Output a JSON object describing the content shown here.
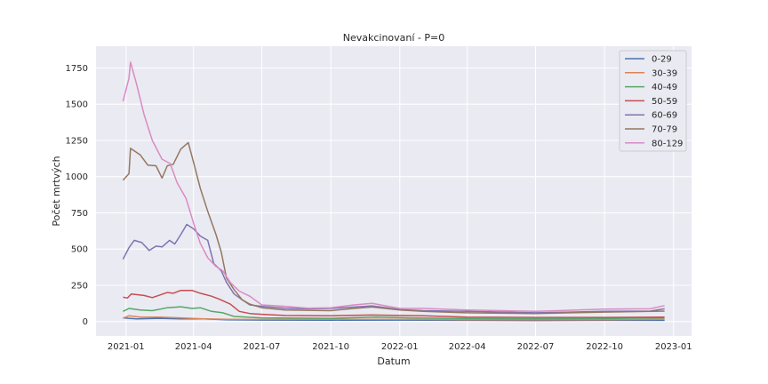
{
  "chart_data": {
    "type": "line",
    "title": "Nevakcinovaní - P=0",
    "xlabel": "Datum",
    "ylabel": "Počet mrtvých",
    "xlim": [
      "2020-11-22",
      "2023-01-25"
    ],
    "ylim": [
      -100,
      1900
    ],
    "grid": true,
    "legend_position": "top-right",
    "x_ticks": [
      "2021-01",
      "2021-04",
      "2021-07",
      "2021-10",
      "2022-01",
      "2022-04",
      "2022-07",
      "2022-10",
      "2023-01"
    ],
    "y_ticks": [
      0,
      250,
      500,
      750,
      1000,
      1250,
      1500,
      1750
    ],
    "x_tick_labels": [
      "2021-01",
      "2021-04",
      "2021-07",
      "2021-10",
      "2022-01",
      "2022-04",
      "2022-07",
      "2022-10",
      "2023-01"
    ],
    "y_tick_labels": [
      "0",
      "250",
      "500",
      "750",
      "1000",
      "1250",
      "1500",
      "1750"
    ],
    "series": [
      {
        "name": "0-29",
        "color": "#4c72b0",
        "points": [
          [
            "2020-12-28",
            25
          ],
          [
            "2021-01-15",
            18
          ],
          [
            "2021-02-15",
            22
          ],
          [
            "2021-03-15",
            18
          ],
          [
            "2021-04-15",
            18
          ],
          [
            "2021-05-15",
            12
          ],
          [
            "2021-07-01",
            10
          ],
          [
            "2021-10-01",
            9
          ],
          [
            "2022-01-01",
            10
          ],
          [
            "2022-04-01",
            8
          ],
          [
            "2022-07-01",
            7
          ],
          [
            "2022-10-01",
            8
          ],
          [
            "2022-12-20",
            8
          ]
        ]
      },
      {
        "name": "30-39",
        "color": "#dd8452",
        "points": [
          [
            "2020-12-28",
            22
          ],
          [
            "2021-01-05",
            40
          ],
          [
            "2021-01-20",
            30
          ],
          [
            "2021-02-15",
            30
          ],
          [
            "2021-03-15",
            25
          ],
          [
            "2021-04-15",
            18
          ],
          [
            "2021-05-15",
            15
          ],
          [
            "2021-07-01",
            14
          ],
          [
            "2021-10-01",
            15
          ],
          [
            "2022-01-01",
            15
          ],
          [
            "2022-04-01",
            12
          ],
          [
            "2022-07-01",
            12
          ],
          [
            "2022-10-01",
            12
          ],
          [
            "2022-12-20",
            15
          ]
        ]
      },
      {
        "name": "40-49",
        "color": "#55a868",
        "points": [
          [
            "2020-12-28",
            70
          ],
          [
            "2021-01-05",
            90
          ],
          [
            "2021-01-20",
            80
          ],
          [
            "2021-02-05",
            75
          ],
          [
            "2021-02-25",
            95
          ],
          [
            "2021-03-15",
            102
          ],
          [
            "2021-03-30",
            90
          ],
          [
            "2021-04-10",
            95
          ],
          [
            "2021-04-25",
            70
          ],
          [
            "2021-05-10",
            60
          ],
          [
            "2021-05-25",
            35
          ],
          [
            "2021-07-01",
            25
          ],
          [
            "2021-10-01",
            22
          ],
          [
            "2021-12-01",
            30
          ],
          [
            "2022-01-15",
            25
          ],
          [
            "2022-04-01",
            20
          ],
          [
            "2022-07-01",
            18
          ],
          [
            "2022-10-01",
            20
          ],
          [
            "2022-12-20",
            25
          ]
        ]
      },
      {
        "name": "50-59",
        "color": "#c44e52",
        "points": [
          [
            "2020-12-28",
            168
          ],
          [
            "2021-01-03",
            162
          ],
          [
            "2021-01-08",
            190
          ],
          [
            "2021-01-25",
            180
          ],
          [
            "2021-02-05",
            165
          ],
          [
            "2021-02-25",
            200
          ],
          [
            "2021-03-05",
            195
          ],
          [
            "2021-03-15",
            215
          ],
          [
            "2021-03-30",
            215
          ],
          [
            "2021-04-10",
            195
          ],
          [
            "2021-04-25",
            175
          ],
          [
            "2021-05-05",
            155
          ],
          [
            "2021-05-20",
            120
          ],
          [
            "2021-06-01",
            70
          ],
          [
            "2021-06-15",
            55
          ],
          [
            "2021-07-01",
            50
          ],
          [
            "2021-08-01",
            42
          ],
          [
            "2021-10-01",
            40
          ],
          [
            "2021-11-25",
            45
          ],
          [
            "2022-01-01",
            42
          ],
          [
            "2022-02-01",
            40
          ],
          [
            "2022-04-01",
            30
          ],
          [
            "2022-07-01",
            28
          ],
          [
            "2022-10-01",
            28
          ],
          [
            "2022-12-20",
            30
          ]
        ]
      },
      {
        "name": "60-69",
        "color": "#8172b3",
        "points": [
          [
            "2020-12-28",
            430
          ],
          [
            "2021-01-05",
            510
          ],
          [
            "2021-01-12",
            560
          ],
          [
            "2021-01-22",
            545
          ],
          [
            "2021-02-01",
            490
          ],
          [
            "2021-02-10",
            520
          ],
          [
            "2021-02-18",
            515
          ],
          [
            "2021-02-28",
            560
          ],
          [
            "2021-03-07",
            535
          ],
          [
            "2021-03-15",
            600
          ],
          [
            "2021-03-23",
            670
          ],
          [
            "2021-04-01",
            640
          ],
          [
            "2021-04-10",
            590
          ],
          [
            "2021-04-20",
            560
          ],
          [
            "2021-04-28",
            400
          ],
          [
            "2021-05-08",
            350
          ],
          [
            "2021-05-15",
            270
          ],
          [
            "2021-05-25",
            190
          ],
          [
            "2021-06-05",
            150
          ],
          [
            "2021-06-15",
            115
          ],
          [
            "2021-07-01",
            105
          ],
          [
            "2021-08-01",
            92
          ],
          [
            "2021-09-01",
            88
          ],
          [
            "2021-10-01",
            90
          ],
          [
            "2021-11-01",
            100
          ],
          [
            "2021-11-25",
            108
          ],
          [
            "2022-01-01",
            82
          ],
          [
            "2022-02-01",
            75
          ],
          [
            "2022-04-01",
            70
          ],
          [
            "2022-07-01",
            60
          ],
          [
            "2022-10-01",
            70
          ],
          [
            "2022-12-01",
            72
          ],
          [
            "2022-12-20",
            88
          ]
        ]
      },
      {
        "name": "70-79",
        "color": "#937860",
        "points": [
          [
            "2020-12-28",
            975
          ],
          [
            "2021-01-05",
            1020
          ],
          [
            "2021-01-07",
            1195
          ],
          [
            "2021-01-20",
            1150
          ],
          [
            "2021-01-30",
            1080
          ],
          [
            "2021-02-10",
            1075
          ],
          [
            "2021-02-18",
            990
          ],
          [
            "2021-02-25",
            1075
          ],
          [
            "2021-03-05",
            1085
          ],
          [
            "2021-03-15",
            1190
          ],
          [
            "2021-03-25",
            1235
          ],
          [
            "2021-04-01",
            1100
          ],
          [
            "2021-04-10",
            920
          ],
          [
            "2021-04-20",
            760
          ],
          [
            "2021-05-01",
            600
          ],
          [
            "2021-05-08",
            480
          ],
          [
            "2021-05-15",
            300
          ],
          [
            "2021-05-25",
            220
          ],
          [
            "2021-06-05",
            150
          ],
          [
            "2021-06-15",
            120
          ],
          [
            "2021-07-01",
            95
          ],
          [
            "2021-08-01",
            80
          ],
          [
            "2021-10-01",
            75
          ],
          [
            "2021-11-01",
            90
          ],
          [
            "2021-11-25",
            100
          ],
          [
            "2022-01-01",
            80
          ],
          [
            "2022-02-01",
            70
          ],
          [
            "2022-04-01",
            60
          ],
          [
            "2022-07-01",
            55
          ],
          [
            "2022-10-01",
            65
          ],
          [
            "2022-12-20",
            72
          ]
        ]
      },
      {
        "name": "80-129",
        "color": "#da8bc3",
        "points": [
          [
            "2020-12-28",
            1520
          ],
          [
            "2021-01-05",
            1680
          ],
          [
            "2021-01-07",
            1790
          ],
          [
            "2021-01-15",
            1640
          ],
          [
            "2021-01-25",
            1430
          ],
          [
            "2021-02-05",
            1250
          ],
          [
            "2021-02-18",
            1120
          ],
          [
            "2021-03-01",
            1090
          ],
          [
            "2021-03-10",
            960
          ],
          [
            "2021-03-22",
            850
          ],
          [
            "2021-04-01",
            680
          ],
          [
            "2021-04-10",
            540
          ],
          [
            "2021-04-20",
            440
          ],
          [
            "2021-05-01",
            380
          ],
          [
            "2021-05-10",
            350
          ],
          [
            "2021-05-20",
            270
          ],
          [
            "2021-06-01",
            210
          ],
          [
            "2021-06-15",
            175
          ],
          [
            "2021-07-01",
            115
          ],
          [
            "2021-08-01",
            105
          ],
          [
            "2021-09-01",
            92
          ],
          [
            "2021-10-01",
            95
          ],
          [
            "2021-11-01",
            115
          ],
          [
            "2021-11-25",
            125
          ],
          [
            "2022-01-01",
            90
          ],
          [
            "2022-02-01",
            90
          ],
          [
            "2022-04-01",
            80
          ],
          [
            "2022-07-01",
            70
          ],
          [
            "2022-10-01",
            85
          ],
          [
            "2022-12-01",
            88
          ],
          [
            "2022-12-20",
            110
          ]
        ]
      }
    ]
  }
}
